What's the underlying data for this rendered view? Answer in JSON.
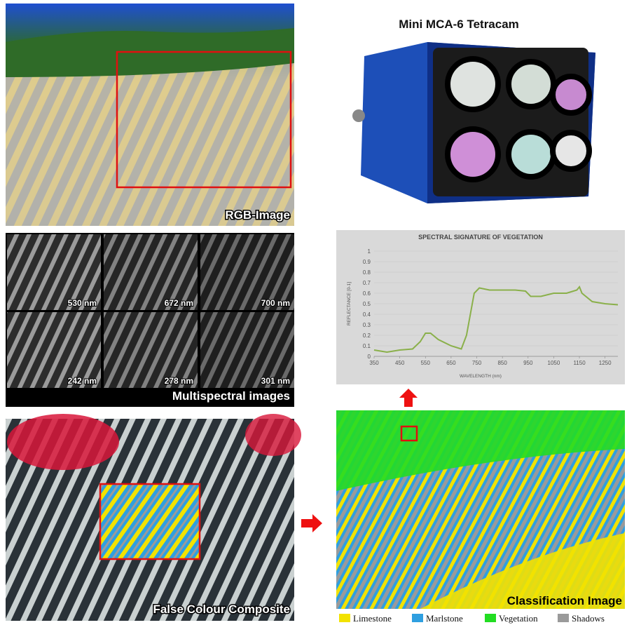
{
  "camera": {
    "title": "Mini MCA-6 Tetracam"
  },
  "rgb_image": {
    "caption": "RGB-Image"
  },
  "multispectral": {
    "caption": "Multispectral images",
    "bands": [
      "530 nm",
      "672 nm",
      "700 nm",
      "242 nm",
      "278 nm",
      "301 nm"
    ]
  },
  "false_colour": {
    "caption": "False Colour Composite"
  },
  "classification": {
    "caption": "Classification Image",
    "legend": [
      {
        "label": "Limestone",
        "color": "#f2e200"
      },
      {
        "label": "Marlstone",
        "color": "#2f9fe0"
      },
      {
        "label": "Vegetation",
        "color": "#22dd22"
      },
      {
        "label": "Shadows",
        "color": "#9a9a9a"
      }
    ]
  },
  "chart_data": {
    "type": "line",
    "title": "SPECTRAL SIGNATURE OF VEGETATION",
    "x_label": "WAVELENGTH (nm)",
    "y_label": "REFLECTANCE [0-1]",
    "x": [
      350,
      400,
      450,
      500,
      530,
      550,
      570,
      600,
      650,
      690,
      710,
      740,
      760,
      800,
      900,
      940,
      960,
      1000,
      1050,
      1100,
      1140,
      1150,
      1160,
      1200,
      1250,
      1300
    ],
    "values": [
      0.06,
      0.04,
      0.06,
      0.07,
      0.14,
      0.22,
      0.22,
      0.16,
      0.1,
      0.07,
      0.2,
      0.6,
      0.65,
      0.63,
      0.63,
      0.62,
      0.57,
      0.57,
      0.6,
      0.6,
      0.63,
      0.66,
      0.6,
      0.52,
      0.5,
      0.49
    ],
    "color": "#8ab04a",
    "xlim": [
      350,
      1300
    ],
    "xticks": [
      350,
      450,
      550,
      650,
      750,
      850,
      950,
      1050,
      1150,
      1250
    ],
    "ylim": [
      0,
      1
    ],
    "yticks": [
      0,
      0.1,
      0.2,
      0.3,
      0.4,
      0.5,
      0.6,
      0.7,
      0.8,
      0.9,
      1
    ],
    "grid": true
  }
}
